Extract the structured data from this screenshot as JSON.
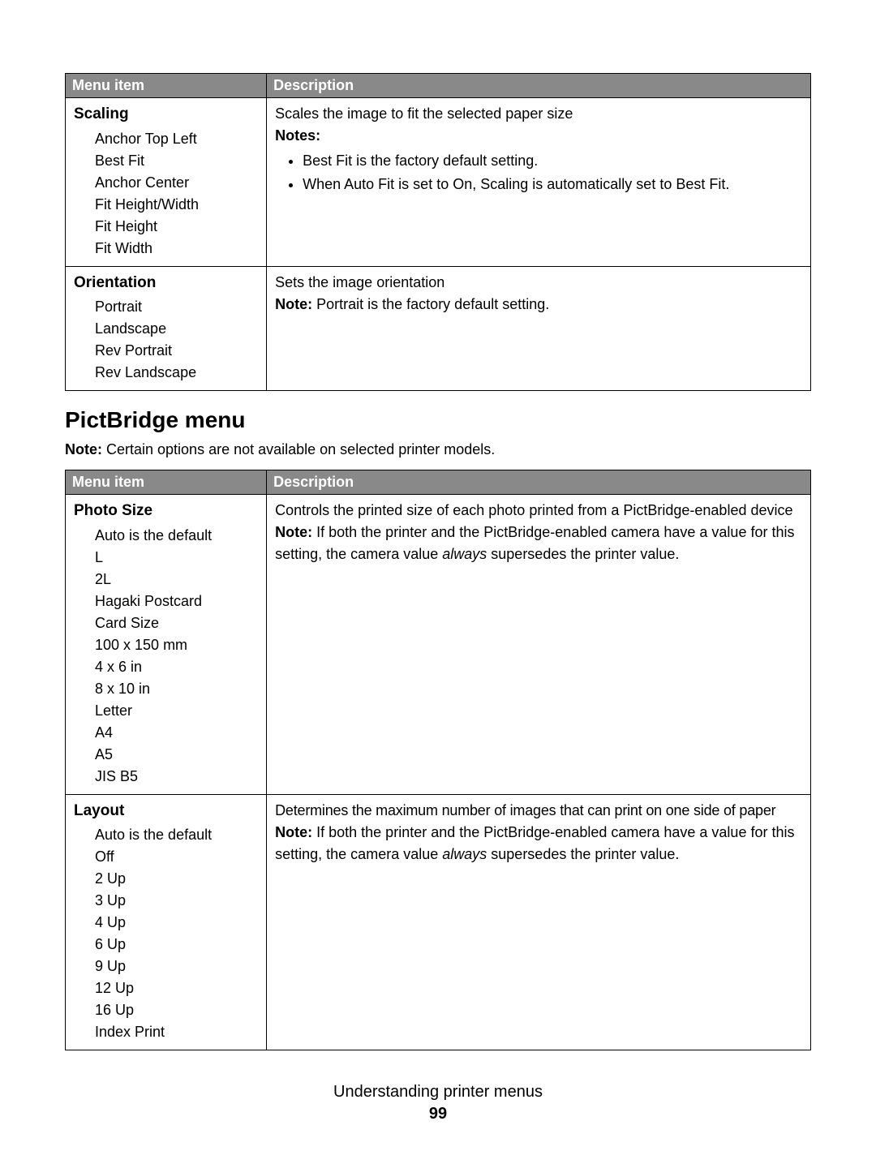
{
  "table1": {
    "header_left": "Menu item",
    "header_right": "Description",
    "rows": [
      {
        "title": "Scaling",
        "options": [
          "Anchor Top Left",
          "Best Fit",
          "Anchor Center",
          "Fit Height/Width",
          "Fit Height",
          "Fit Width"
        ],
        "desc_intro": "Scales the image to fit the selected paper size",
        "notes_label": "Notes:",
        "notes": [
          "Best Fit is the factory default setting.",
          "When Auto Fit is set to On, Scaling is automatically set to Best Fit."
        ]
      },
      {
        "title": "Orientation",
        "options": [
          "Portrait",
          "Landscape",
          "Rev Portrait",
          "Rev Landscape"
        ],
        "desc_intro": "Sets the image orientation",
        "note_prefix": "Note: ",
        "note_text": "Portrait is the factory default setting."
      }
    ]
  },
  "section": {
    "title": "PictBridge menu",
    "note_prefix": "Note: ",
    "note_text": "Certain options are not available on selected printer models."
  },
  "table2": {
    "header_left": "Menu item",
    "header_right": "Description",
    "rows": [
      {
        "title": "Photo Size",
        "options": [
          "Auto is the default",
          "L",
          "2L",
          "Hagaki Postcard",
          "Card Size",
          "100 x 150 mm",
          "4 x 6 in",
          "8 x 10 in",
          "Letter",
          "A4",
          "A5",
          "JIS B5"
        ],
        "desc_intro": "Controls the printed size of each photo printed from a PictBridge-enabled device",
        "note_prefix": "Note: ",
        "note_text_a": "If both the printer and the PictBridge-enabled camera have a value for this setting, the camera value ",
        "note_ital": "always",
        "note_text_b": " supersedes the printer value."
      },
      {
        "title": "Layout",
        "options": [
          "Auto is the default",
          "Off",
          "2 Up",
          "3 Up",
          "4 Up",
          "6 Up",
          "9 Up",
          "12 Up",
          "16 Up",
          "Index Print"
        ],
        "desc_intro": "Determines the maximum number of images that can print on one side of paper",
        "note_prefix": "Note: ",
        "note_text_a": "If both the printer and the PictBridge-enabled camera have a value for this setting, the camera value ",
        "note_ital": "always",
        "note_text_b": " supersedes the printer value."
      }
    ]
  },
  "footer": {
    "line1": "Understanding printer menus",
    "line2": "99"
  },
  "styling": {
    "header_bg": "#898989",
    "header_fg": "#ffffff",
    "border_color": "#000000",
    "body_fontsize": 18,
    "title_fontsize": 19,
    "section_fontsize": 28,
    "col1_width_pct": 27,
    "col2_width_pct": 73,
    "page_bg": "#ffffff"
  }
}
